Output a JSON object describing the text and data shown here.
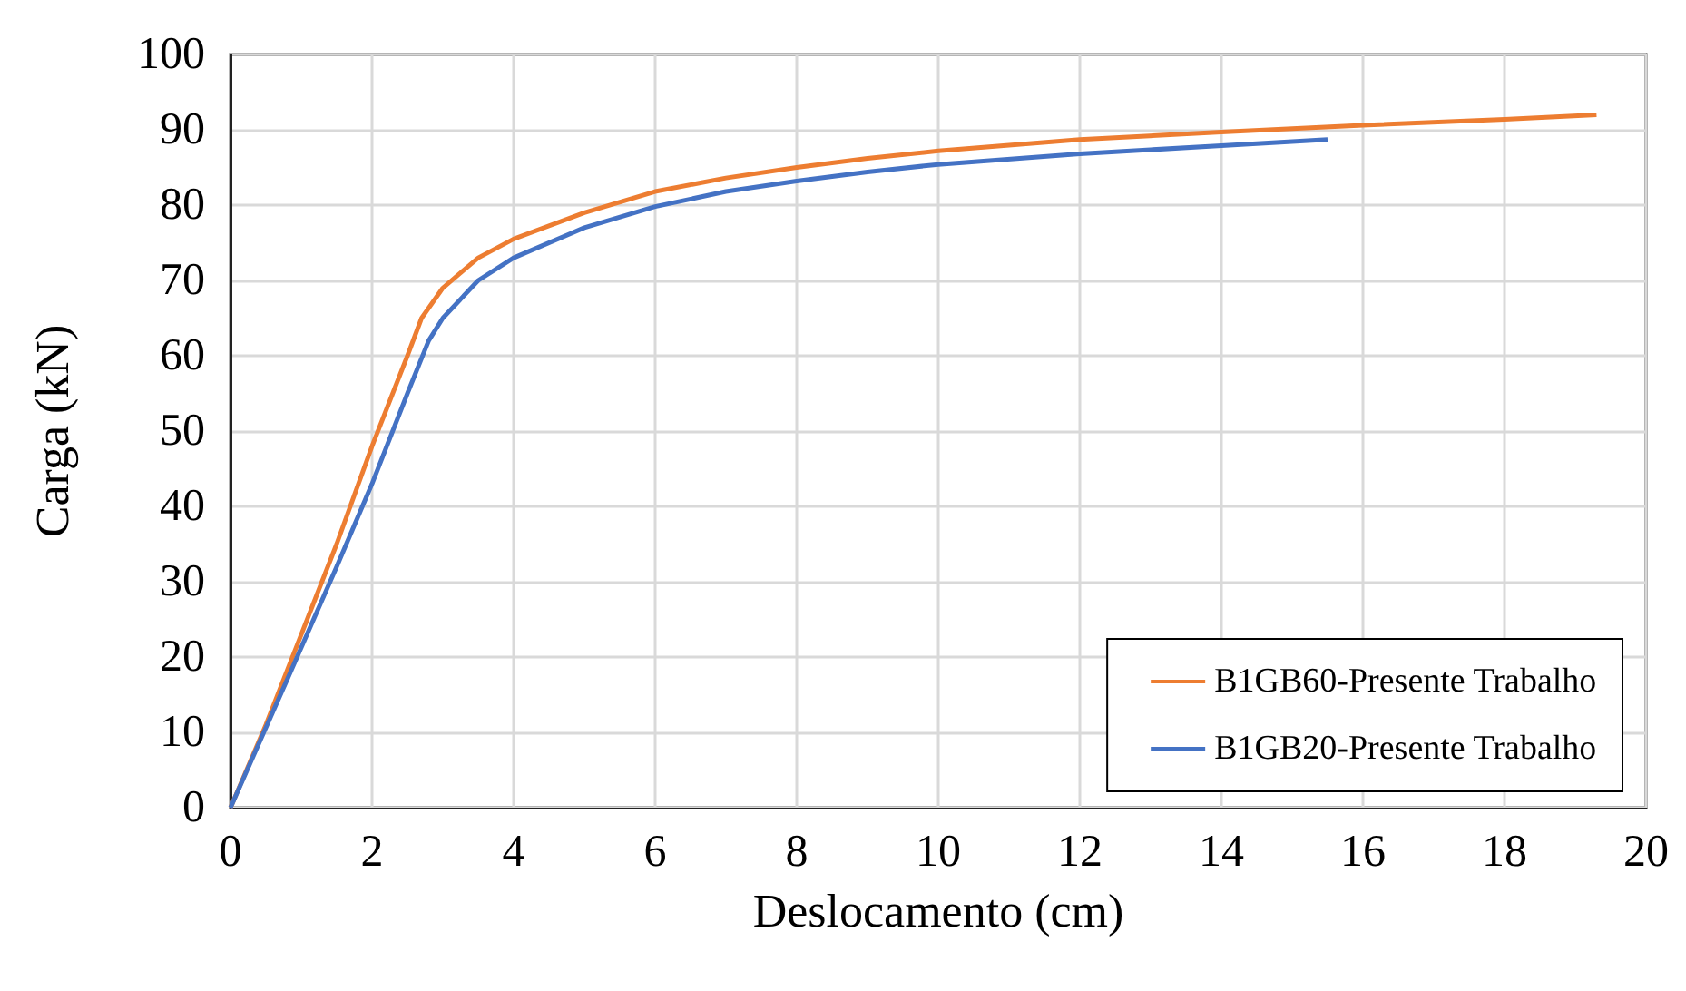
{
  "chart_data": {
    "type": "line",
    "xlabel": "Deslocamento (cm)",
    "ylabel": "Carga (kN)",
    "xlim": [
      0,
      20
    ],
    "xticks": [
      0,
      2,
      4,
      6,
      8,
      10,
      12,
      14,
      16,
      18,
      20
    ],
    "ylim": [
      0,
      100
    ],
    "yticks": [
      0,
      10,
      20,
      30,
      40,
      50,
      60,
      70,
      80,
      90,
      100
    ],
    "grid": true,
    "legend": "bottom right",
    "marker": "none",
    "line_style": "solid",
    "series": [
      {
        "name": "B1GB60-Presente Trabalho",
        "color": "#ed7d31",
        "x": [
          0,
          0.5,
          1,
          1.5,
          2,
          2.5,
          2.7,
          3,
          3.5,
          4,
          5,
          6,
          7,
          8,
          9,
          10,
          12,
          14,
          16,
          18,
          19.3
        ],
        "values": [
          0,
          11,
          23,
          35,
          48,
          60,
          65,
          69,
          73,
          75.5,
          79,
          81.8,
          83.6,
          85,
          86.2,
          87.2,
          88.7,
          89.7,
          90.6,
          91.4,
          92
        ]
      },
      {
        "name": "B1GB20-Presente Trabalho",
        "color": "#4472c4",
        "x": [
          0,
          0.8,
          1.5,
          2,
          2.5,
          2.8,
          3,
          3.5,
          4,
          5,
          6,
          7,
          8,
          9,
          10,
          12,
          14,
          15.5
        ],
        "values": [
          0,
          17,
          32,
          43,
          55,
          62,
          65,
          70,
          73,
          77,
          79.8,
          81.8,
          83.2,
          84.4,
          85.4,
          86.8,
          87.9,
          88.7
        ]
      }
    ]
  }
}
